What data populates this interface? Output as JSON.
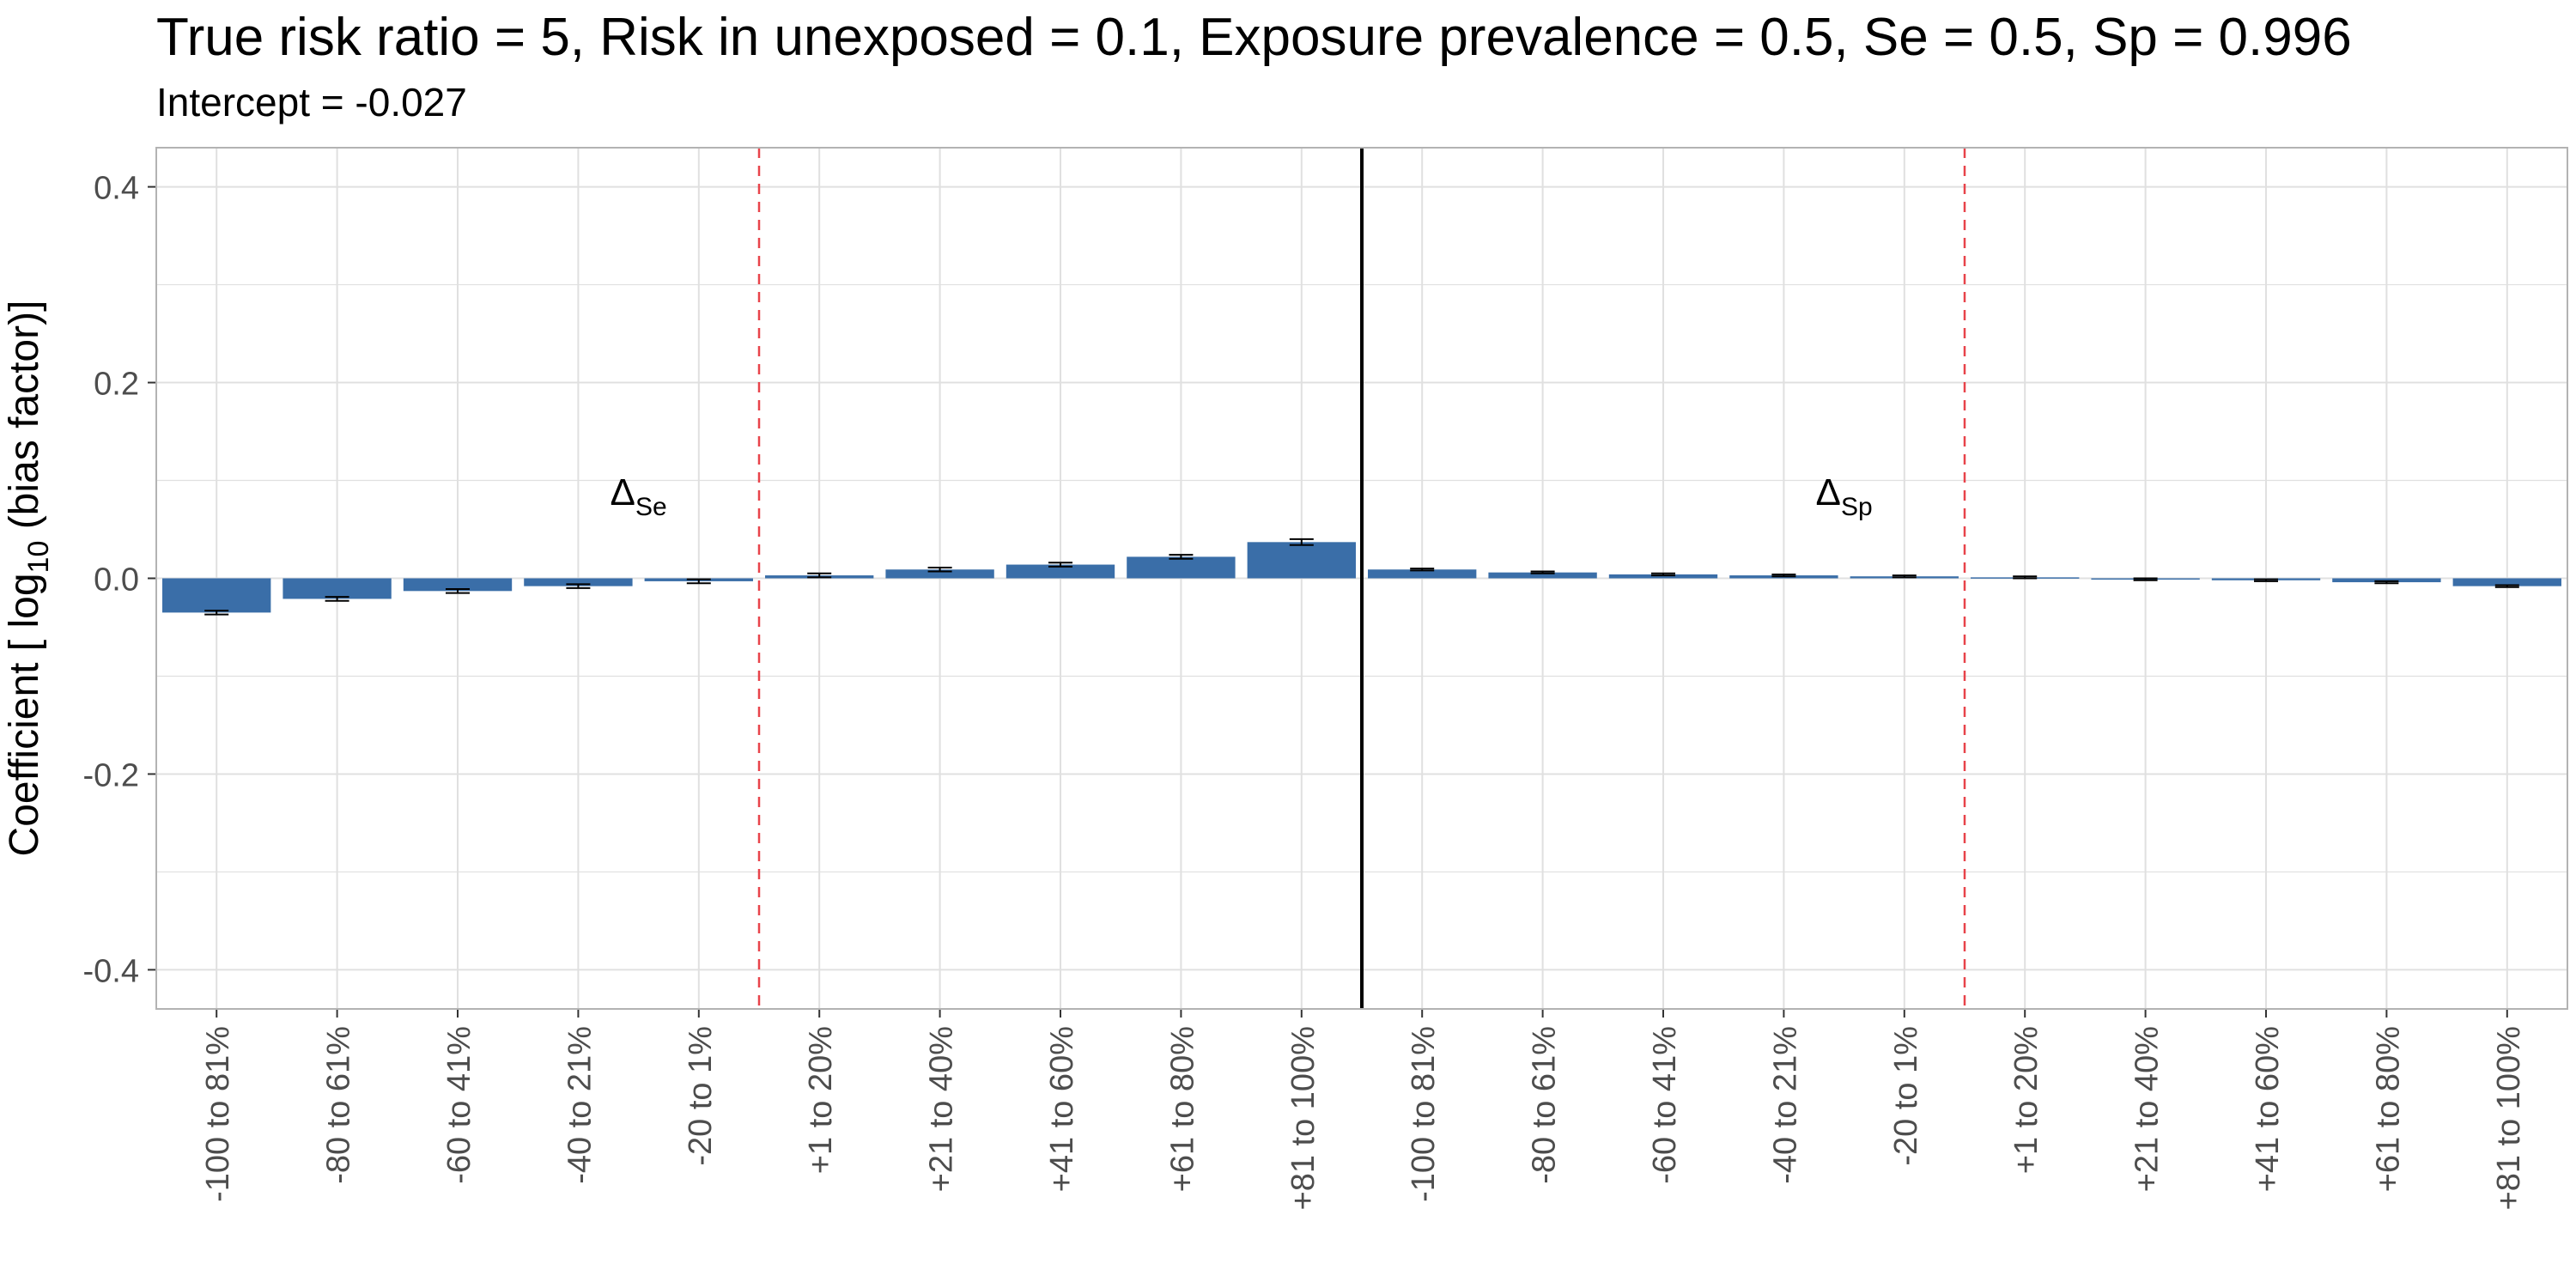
{
  "chart_data": {
    "type": "bar",
    "title": "True risk ratio = 5, Risk in unexposed = 0.1, Exposure prevalence = 0.5, Se = 0.5, Sp = 0.996",
    "subtitle": "Intercept = -0.027",
    "ylabel": "Coefficient [ log10 (bias factor)]",
    "xlabel": "",
    "ylim": [
      -0.44,
      0.44
    ],
    "y_ticks": [
      -0.4,
      -0.2,
      0.0,
      0.2,
      0.4
    ],
    "y_tick_labels": [
      "-0.4",
      "-0.2",
      "0.0",
      "0.2",
      "0.4"
    ],
    "grid": true,
    "bar_color": "#3A6EA8",
    "separator_color": "#000000",
    "reference_line_color": "#E8434A",
    "panel_border_color": "#B3B3B3",
    "grid_color": "#E0E0E0",
    "groups": [
      {
        "symbol": "Δ",
        "subscript": "Se"
      },
      {
        "symbol": "Δ",
        "subscript": "Sp"
      }
    ],
    "categories": [
      "-100 to 81%",
      "-80 to 61%",
      "-60 to 41%",
      "-40 to 21%",
      "-20 to 1%",
      "+1 to 20%",
      "+21 to 40%",
      "+41 to 60%",
      "+61 to 80%",
      "+81 to 100%",
      "-100 to 81%",
      "-80 to 61%",
      "-60 to 41%",
      "-40 to 21%",
      "-20 to 1%",
      "+1 to 20%",
      "+21 to 40%",
      "+41 to 60%",
      "+61 to 80%",
      "+81 to 100%"
    ],
    "values": [
      -0.035,
      -0.021,
      -0.013,
      -0.008,
      -0.003,
      0.003,
      0.009,
      0.014,
      0.022,
      0.037,
      0.009,
      0.006,
      0.004,
      0.003,
      0.002,
      0.001,
      -0.001,
      -0.002,
      -0.004,
      -0.008
    ],
    "error_low": [
      -0.037,
      -0.023,
      -0.015,
      -0.01,
      -0.005,
      0.001,
      0.007,
      0.012,
      0.02,
      0.034,
      0.008,
      0.005,
      0.003,
      0.002,
      0.001,
      0.0,
      -0.002,
      -0.003,
      -0.005,
      -0.009
    ],
    "error_high": [
      -0.033,
      -0.019,
      -0.011,
      -0.006,
      -0.001,
      0.005,
      0.011,
      0.016,
      0.024,
      0.04,
      0.01,
      0.007,
      0.005,
      0.004,
      0.003,
      0.002,
      0.0,
      -0.001,
      -0.003,
      -0.007
    ]
  }
}
